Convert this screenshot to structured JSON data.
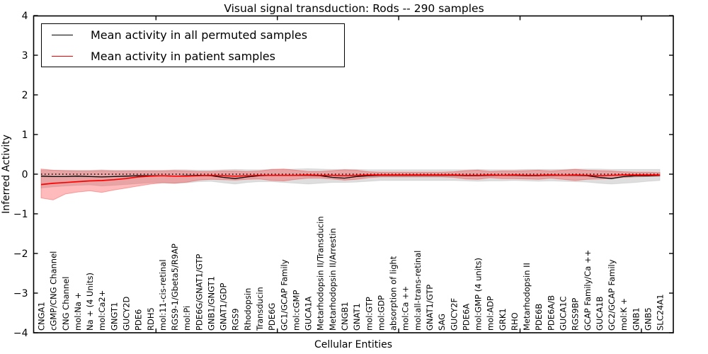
{
  "title": "Visual signal transduction: Rods -- 290 samples",
  "legend": {
    "items": [
      {
        "label": "Mean activity in all permuted samples",
        "color": "#000000"
      },
      {
        "label": "Mean activity in patient samples",
        "color": "#ff0000"
      }
    ]
  },
  "colors": {
    "permuted_line": "#000000",
    "patient_line": "#ff0000",
    "permuted_band": "rgba(0,0,0,0.13)",
    "patient_band": "rgba(255,30,30,0.30)",
    "patient_band_edge": "rgba(230,40,40,0.35)",
    "axis": "#000000"
  },
  "chart_data": {
    "type": "line",
    "title": "Visual signal transduction: Rods -- 290 samples",
    "xlabel": "Cellular Entities",
    "ylabel": "Inferred Activity",
    "ylim": [
      -4,
      4
    ],
    "yticks": [
      4,
      3,
      2,
      1,
      0,
      -1,
      -2,
      -3,
      -4
    ],
    "ytick_labels": [
      "4",
      "3",
      "2",
      "1",
      "0",
      "−1",
      "−2",
      "−3",
      "−4"
    ],
    "xtick_positions": [
      9.47,
      19.47,
      29.47,
      39.47,
      49.47
    ],
    "grid": false,
    "legend_position": "upper left",
    "reference_line": {
      "y": 0,
      "style": "dotted",
      "color": "#000000"
    },
    "categories": [
      "CNGA1",
      "cGMP/CNG Channel",
      "CNG Channel",
      "mol:Na +",
      "Na + (4 Units)",
      "mol:Ca2+",
      "GNGT1",
      "GUCY2D",
      "PDE6",
      "RDH5",
      "mol:11-cis-retinal",
      "RGS9-1/Gbeta5/R9AP",
      "mol:Pi",
      "PDE6G/GNAT1/GTP",
      "GNB1/GNGT1",
      "GNAT1/GDP",
      "RGS9",
      "Rhodopsin",
      "Transducin",
      "PDE6G",
      "GC1/GCAP Family",
      "mol:cGMP",
      "GUCA1A",
      "Metarhodopsin II/Transducin",
      "Metarhodopsin II/Arrestin",
      "CNGB1",
      "GNAT1",
      "mol:GTP",
      "mol:GDP",
      "absorption of light",
      "mol:Ca ++",
      "mol:all-trans-retinal",
      "GNAT1/GTP",
      "SAG",
      "GUCY2F",
      "PDE6A",
      "mol:GMP (4 units)",
      "mol:ADP",
      "GRK1",
      "RHO",
      "Metarhodopsin II",
      "PDE6B",
      "PDE6A/B",
      "GUCA1C",
      "RGS9BP",
      "GCAP Family/Ca ++",
      "GUCA1B",
      "GC2/GCAP Family",
      "mol:K +",
      "GNB1",
      "GNB5",
      "SLC24A1"
    ],
    "series": [
      {
        "name": "Mean activity in all permuted samples",
        "color": "#000000",
        "values": [
          -0.05,
          -0.06,
          -0.06,
          -0.05,
          -0.06,
          -0.07,
          -0.06,
          -0.05,
          -0.04,
          -0.04,
          -0.04,
          -0.05,
          -0.04,
          -0.03,
          -0.04,
          -0.08,
          -0.11,
          -0.07,
          -0.04,
          -0.03,
          -0.03,
          -0.03,
          -0.03,
          -0.04,
          -0.08,
          -0.1,
          -0.06,
          -0.04,
          -0.03,
          -0.03,
          -0.03,
          -0.03,
          -0.03,
          -0.03,
          -0.03,
          -0.04,
          -0.04,
          -0.03,
          -0.03,
          -0.03,
          -0.04,
          -0.04,
          -0.03,
          -0.03,
          -0.03,
          -0.04,
          -0.08,
          -0.11,
          -0.06,
          -0.04,
          -0.04,
          -0.03
        ]
      },
      {
        "name": "Mean activity in patient samples",
        "color": "#ff0000",
        "values": [
          -0.26,
          -0.23,
          -0.21,
          -0.19,
          -0.17,
          -0.16,
          -0.14,
          -0.11,
          -0.07,
          -0.05,
          -0.04,
          -0.05,
          -0.05,
          -0.04,
          -0.03,
          -0.04,
          -0.05,
          -0.04,
          -0.03,
          -0.03,
          -0.03,
          -0.03,
          -0.02,
          -0.03,
          -0.03,
          -0.04,
          -0.03,
          -0.02,
          -0.02,
          -0.02,
          -0.02,
          -0.02,
          -0.02,
          -0.02,
          -0.02,
          -0.03,
          -0.03,
          -0.02,
          -0.03,
          -0.02,
          -0.03,
          -0.03,
          -0.02,
          -0.03,
          -0.02,
          -0.03,
          -0.04,
          -0.03,
          -0.02,
          -0.02,
          -0.02,
          -0.02
        ]
      }
    ],
    "bands": [
      {
        "name": "permuted samples range",
        "color": "rgba(0,0,0,0.13)",
        "low": [
          -0.35,
          -0.32,
          -0.3,
          -0.28,
          -0.27,
          -0.3,
          -0.28,
          -0.26,
          -0.24,
          -0.22,
          -0.21,
          -0.23,
          -0.22,
          -0.19,
          -0.18,
          -0.22,
          -0.25,
          -0.21,
          -0.19,
          -0.19,
          -0.21,
          -0.23,
          -0.25,
          -0.23,
          -0.21,
          -0.21,
          -0.2,
          -0.18,
          -0.16,
          -0.16,
          -0.16,
          -0.16,
          -0.16,
          -0.16,
          -0.16,
          -0.17,
          -0.18,
          -0.17,
          -0.17,
          -0.16,
          -0.17,
          -0.18,
          -0.17,
          -0.18,
          -0.19,
          -0.2,
          -0.23,
          -0.25,
          -0.23,
          -0.21,
          -0.18,
          -0.16
        ],
        "high": [
          0.1,
          0.1,
          0.1,
          0.1,
          0.1,
          0.11,
          0.1,
          0.1,
          0.1,
          0.1,
          0.1,
          0.11,
          0.11,
          0.1,
          0.1,
          0.11,
          0.12,
          0.11,
          0.11,
          0.12,
          0.12,
          0.13,
          0.14,
          0.13,
          0.12,
          0.12,
          0.12,
          0.11,
          0.11,
          0.11,
          0.11,
          0.11,
          0.11,
          0.11,
          0.11,
          0.11,
          0.12,
          0.11,
          0.11,
          0.11,
          0.12,
          0.12,
          0.12,
          0.12,
          0.13,
          0.13,
          0.13,
          0.12,
          0.12,
          0.12,
          0.12,
          0.12
        ]
      },
      {
        "name": "patient samples range",
        "color": "rgba(255,30,30,0.30)",
        "low": [
          -0.6,
          -0.65,
          -0.5,
          -0.45,
          -0.42,
          -0.46,
          -0.4,
          -0.35,
          -0.3,
          -0.25,
          -0.22,
          -0.23,
          -0.2,
          -0.15,
          -0.13,
          -0.14,
          -0.15,
          -0.13,
          -0.12,
          -0.16,
          -0.17,
          -0.13,
          -0.1,
          -0.1,
          -0.12,
          -0.15,
          -0.13,
          -0.09,
          -0.07,
          -0.07,
          -0.07,
          -0.07,
          -0.07,
          -0.07,
          -0.08,
          -0.12,
          -0.13,
          -0.09,
          -0.11,
          -0.11,
          -0.12,
          -0.13,
          -0.1,
          -0.13,
          -0.16,
          -0.13,
          -0.12,
          -0.11,
          -0.08,
          -0.07,
          -0.06,
          -0.05
        ],
        "high": [
          0.13,
          0.1,
          0.09,
          0.08,
          0.08,
          0.09,
          0.08,
          0.08,
          0.08,
          0.08,
          0.08,
          0.09,
          0.08,
          0.07,
          0.07,
          0.08,
          0.08,
          0.07,
          0.08,
          0.12,
          0.13,
          0.1,
          0.07,
          0.07,
          0.09,
          0.11,
          0.1,
          0.06,
          0.05,
          0.05,
          0.05,
          0.05,
          0.05,
          0.05,
          0.06,
          0.09,
          0.1,
          0.07,
          0.08,
          0.08,
          0.09,
          0.1,
          0.08,
          0.1,
          0.12,
          0.1,
          0.09,
          0.08,
          0.06,
          0.05,
          0.05,
          0.04
        ]
      }
    ]
  }
}
